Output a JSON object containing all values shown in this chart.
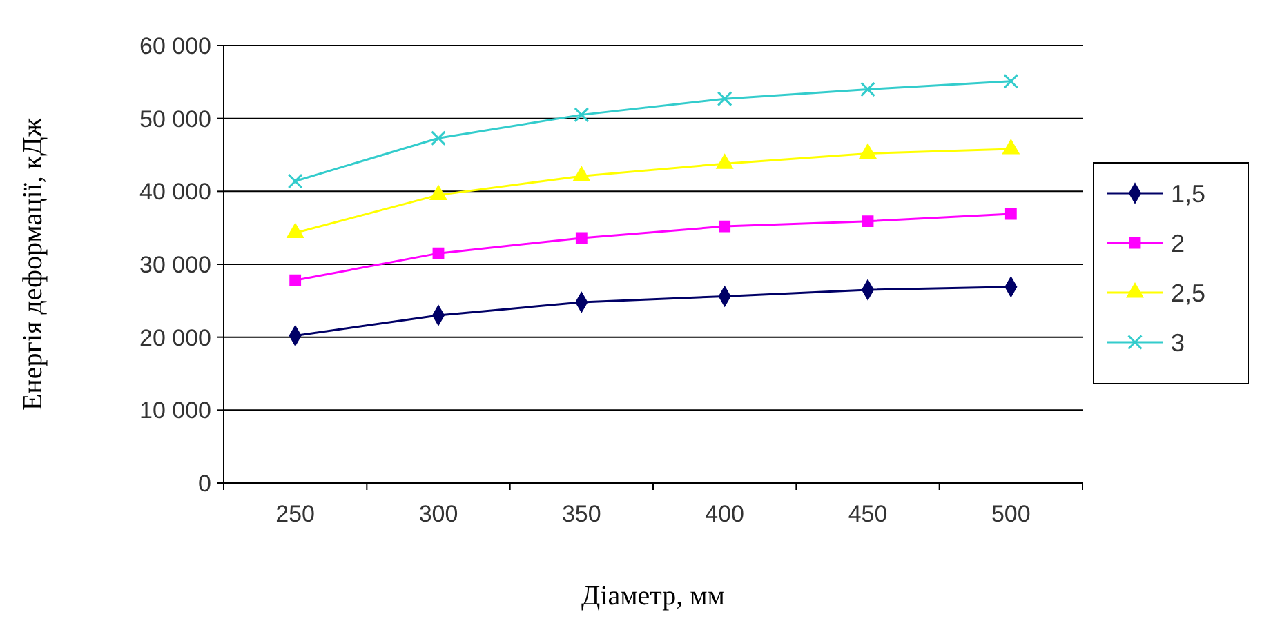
{
  "chart_data": {
    "type": "line",
    "xlabel": "Діаметр, мм",
    "ylabel": "Енергія деформації, кДж",
    "categories": [
      "250",
      "300",
      "350",
      "400",
      "450",
      "500"
    ],
    "ylim": [
      0,
      60000
    ],
    "yticks": [
      {
        "value": 0,
        "label": "0"
      },
      {
        "value": 10000,
        "label": "10 000"
      },
      {
        "value": 20000,
        "label": "20 000"
      },
      {
        "value": 30000,
        "label": "30 000"
      },
      {
        "value": 40000,
        "label": "40 000"
      },
      {
        "value": 50000,
        "label": "50 000"
      },
      {
        "value": 60000,
        "label": "60 000"
      }
    ],
    "grid": "y",
    "legend": "right",
    "series": [
      {
        "name": "1,5",
        "color": "#000066",
        "marker": "diamond",
        "values": [
          20200,
          23000,
          24800,
          25600,
          26500,
          26900
        ]
      },
      {
        "name": "2",
        "color": "#ff00ff",
        "marker": "square",
        "values": [
          27800,
          31500,
          33600,
          35200,
          35900,
          36900
        ]
      },
      {
        "name": "2,5",
        "color": "#ffff00",
        "marker": "triangle",
        "values": [
          34300,
          39500,
          42100,
          43800,
          45200,
          45800
        ]
      },
      {
        "name": "3",
        "color": "#33cccc",
        "marker": "cross",
        "values": [
          41400,
          47300,
          50500,
          52700,
          54000,
          55100
        ]
      }
    ]
  }
}
